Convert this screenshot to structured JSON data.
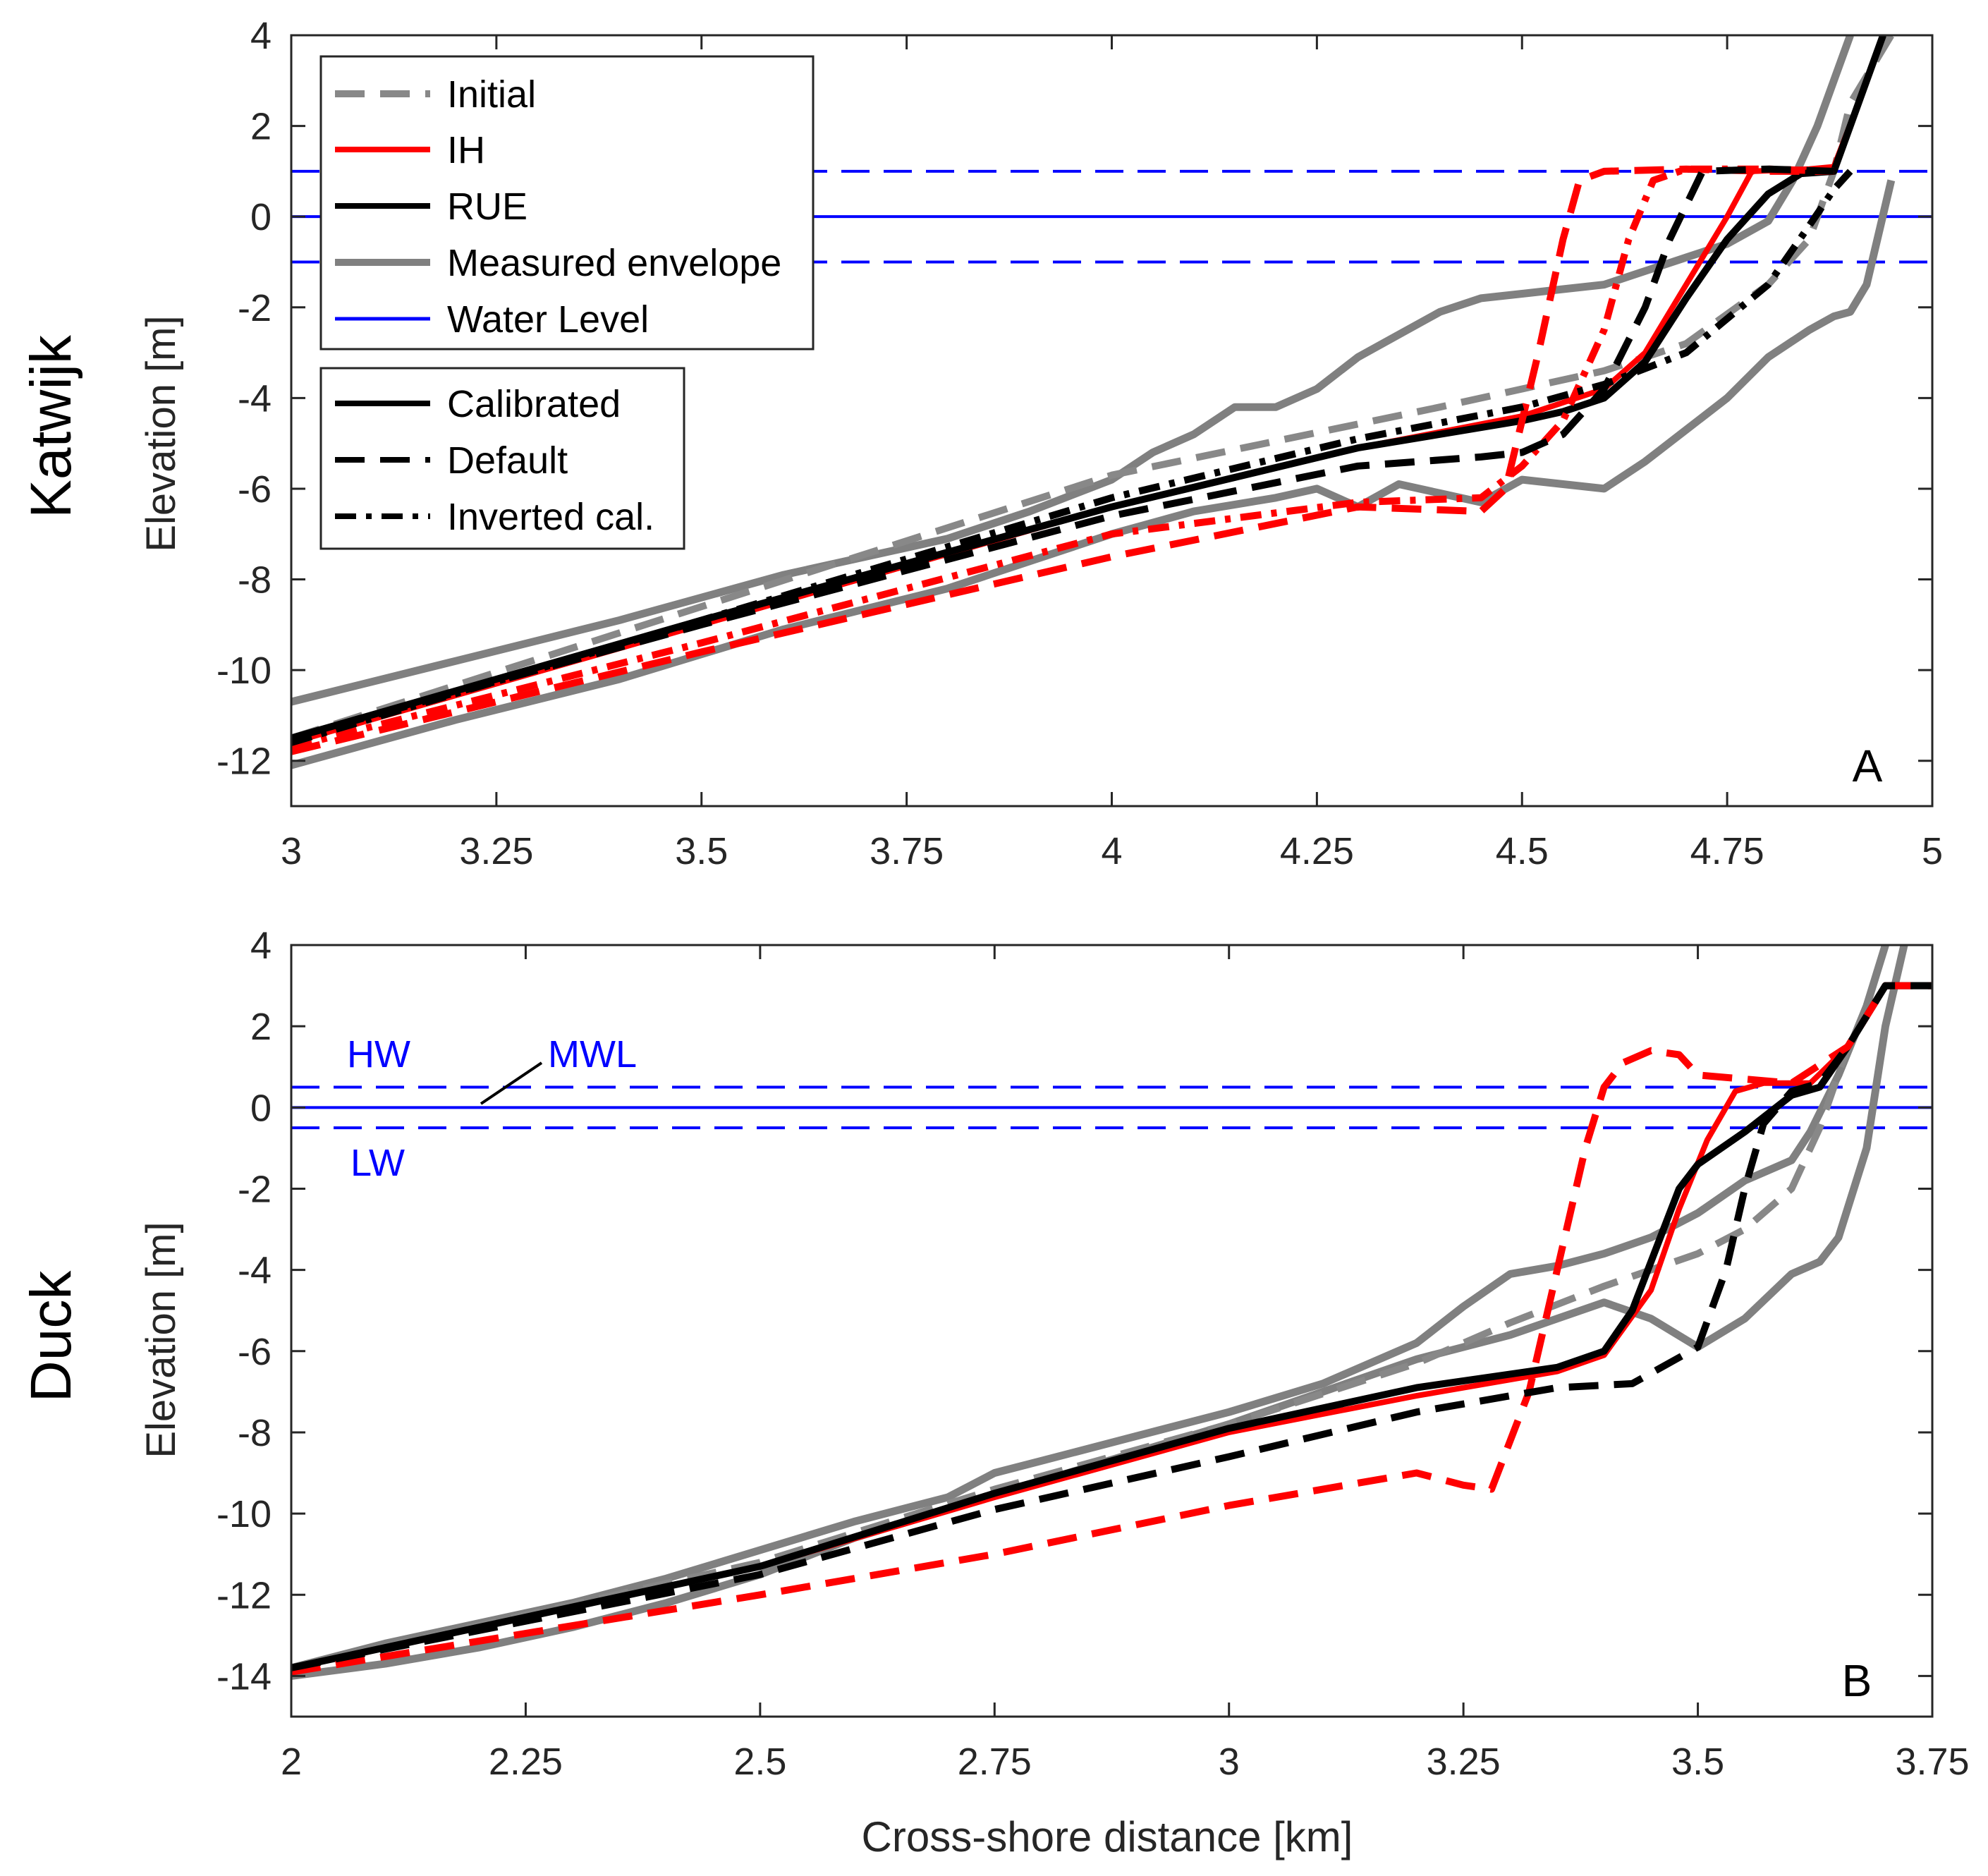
{
  "colors": {
    "initial": "#888888",
    "ih": "#ff0000",
    "rue": "#000000",
    "measured": "#808080",
    "water": "#0000ff",
    "axis": "#262626"
  },
  "chart_data": [
    {
      "type": "line",
      "panel_label": "A",
      "row_label": "Katwijk",
      "xlabel": "",
      "ylabel": "Elevation [m]",
      "xlim": [
        3,
        5
      ],
      "ylim": [
        -13,
        4
      ],
      "xticks": [
        3,
        3.25,
        3.5,
        3.75,
        4,
        4.25,
        4.5,
        4.75,
        5
      ],
      "xtick_labels": [
        "3",
        "3.25",
        "3.5",
        "3.75",
        "4",
        "4.25",
        "4.5",
        "4.75",
        "5"
      ],
      "yticks": [
        4,
        2,
        0,
        -2,
        -4,
        -6,
        -8,
        -10,
        -12
      ],
      "ytick_labels": [
        "4",
        "2",
        "0",
        "-2",
        "-4",
        "-6",
        "-8",
        "-10",
        "-12"
      ],
      "hlines": [
        {
          "name": "Water Level",
          "y": 0,
          "style": "solid",
          "color": "water"
        },
        {
          "name": "Water Level high",
          "y": 1,
          "style": "dashed",
          "color": "water"
        },
        {
          "name": "Water Level low",
          "y": -1,
          "style": "dashed",
          "color": "water"
        }
      ],
      "legend_models": [
        "Initial",
        "IH",
        "RUE",
        "Measured envelope",
        "Water Level"
      ],
      "legend_styles": [
        "Calibrated",
        "Default",
        "Inverted cal."
      ],
      "series": [
        {
          "name": "Measured envelope (upper)",
          "color": "measured",
          "style": "solid",
          "width": 11,
          "x": [
            3.0,
            3.2,
            3.4,
            3.6,
            3.8,
            3.9,
            4.0,
            4.05,
            4.1,
            4.15,
            4.2,
            4.25,
            4.3,
            4.35,
            4.4,
            4.45,
            4.5,
            4.55,
            4.6,
            4.65,
            4.7,
            4.75,
            4.8,
            4.83,
            4.86,
            4.88,
            4.9
          ],
          "y": [
            -10.7,
            -9.8,
            -8.9,
            -7.9,
            -7.1,
            -6.5,
            -5.8,
            -5.2,
            -4.8,
            -4.2,
            -4.2,
            -3.8,
            -3.1,
            -2.6,
            -2.1,
            -1.8,
            -1.7,
            -1.6,
            -1.5,
            -1.2,
            -0.9,
            -0.6,
            -0.1,
            0.8,
            2.0,
            3.0,
            4.0
          ]
        },
        {
          "name": "Measured envelope (lower)",
          "color": "measured",
          "style": "solid",
          "width": 11,
          "x": [
            3.0,
            3.2,
            3.4,
            3.6,
            3.8,
            3.9,
            4.0,
            4.1,
            4.2,
            4.25,
            4.3,
            4.35,
            4.4,
            4.45,
            4.5,
            4.55,
            4.6,
            4.65,
            4.7,
            4.75,
            4.8,
            4.85,
            4.88,
            4.9,
            4.92,
            4.95
          ],
          "y": [
            -12.1,
            -11.1,
            -10.2,
            -9.1,
            -8.2,
            -7.6,
            -7.0,
            -6.5,
            -6.2,
            -6.0,
            -6.4,
            -5.9,
            -6.1,
            -6.3,
            -5.8,
            -5.9,
            -6.0,
            -5.4,
            -4.7,
            -4.0,
            -3.1,
            -2.5,
            -2.2,
            -2.1,
            -1.5,
            0.8
          ]
        },
        {
          "name": "Initial",
          "color": "initial",
          "style": "dashed",
          "width": 10,
          "x": [
            3.0,
            3.5,
            4.0,
            4.4,
            4.6,
            4.7,
            4.8,
            4.85,
            4.88,
            4.9,
            4.95
          ],
          "y": [
            -11.5,
            -8.6,
            -5.7,
            -4.2,
            -3.4,
            -2.8,
            -1.5,
            -0.5,
            1.0,
            2.5,
            4.0
          ]
        },
        {
          "name": "IH calibrated",
          "color": "ih",
          "style": "solid",
          "width": 8,
          "x": [
            3.0,
            3.5,
            4.0,
            4.3,
            4.5,
            4.6,
            4.65,
            4.7,
            4.75,
            4.78,
            4.85,
            4.88,
            4.91,
            4.94
          ],
          "y": [
            -11.6,
            -9.0,
            -6.4,
            -5.1,
            -4.4,
            -3.8,
            -3.0,
            -1.5,
            0.0,
            1.0,
            1.05,
            1.1,
            2.5,
            4.0
          ]
        },
        {
          "name": "RUE calibrated",
          "color": "rue",
          "style": "solid",
          "width": 10,
          "x": [
            3.0,
            3.5,
            4.0,
            4.3,
            4.5,
            4.55,
            4.6,
            4.65,
            4.7,
            4.75,
            4.8,
            4.84,
            4.88,
            4.91,
            4.94
          ],
          "y": [
            -11.5,
            -8.9,
            -6.4,
            -5.1,
            -4.5,
            -4.3,
            -4.0,
            -3.2,
            -1.8,
            -0.5,
            0.5,
            0.95,
            1.0,
            2.5,
            4.0
          ]
        },
        {
          "name": "IH default",
          "color": "ih",
          "style": "dashed",
          "width": 10,
          "x": [
            3.0,
            3.5,
            4.0,
            4.3,
            4.45,
            4.48,
            4.52,
            4.55,
            4.57,
            4.6,
            4.7,
            4.8,
            4.88
          ],
          "y": [
            -11.8,
            -9.6,
            -7.5,
            -6.4,
            -6.5,
            -6.0,
            -3.0,
            -0.5,
            0.8,
            1.0,
            1.05,
            1.0,
            1.0
          ]
        },
        {
          "name": "IH inverted cal.",
          "color": "ih",
          "style": "dashdot",
          "width": 10,
          "x": [
            3.0,
            3.5,
            4.0,
            4.3,
            4.45,
            4.5,
            4.55,
            4.6,
            4.63,
            4.66,
            4.7,
            4.8,
            4.88
          ],
          "y": [
            -11.7,
            -9.4,
            -7.0,
            -6.3,
            -6.2,
            -5.5,
            -4.5,
            -2.5,
            -0.5,
            0.8,
            1.05,
            1.05,
            1.0
          ]
        },
        {
          "name": "RUE default",
          "color": "rue",
          "style": "dashed",
          "width": 10,
          "x": [
            3.0,
            3.5,
            4.0,
            4.3,
            4.45,
            4.5,
            4.55,
            4.6,
            4.65,
            4.68,
            4.72,
            4.8,
            4.88
          ],
          "y": [
            -11.5,
            -9.0,
            -6.6,
            -5.5,
            -5.3,
            -5.2,
            -4.8,
            -3.8,
            -2.0,
            -0.5,
            1.0,
            1.05,
            1.0
          ]
        },
        {
          "name": "RUE inverted cal.",
          "color": "rue",
          "style": "dashdot",
          "width": 10,
          "x": [
            3.0,
            3.5,
            4.0,
            4.3,
            4.5,
            4.6,
            4.7,
            4.8,
            4.85,
            4.88,
            4.9
          ],
          "y": [
            -11.6,
            -8.9,
            -6.2,
            -4.9,
            -4.2,
            -3.7,
            -3.0,
            -1.5,
            -0.2,
            0.6,
            1.0
          ]
        }
      ]
    },
    {
      "type": "line",
      "panel_label": "B",
      "row_label": "Duck",
      "xlabel": "Cross-shore distance [km]",
      "ylabel": "Elevation [m]",
      "xlim": [
        2,
        3.75
      ],
      "ylim": [
        -15,
        4
      ],
      "xticks": [
        2,
        2.25,
        2.5,
        2.75,
        3,
        3.25,
        3.5,
        3.75
      ],
      "xtick_labels": [
        "2",
        "2.25",
        "2.5",
        "2.75",
        "3",
        "3.25",
        "3.5",
        "3.75"
      ],
      "yticks": [
        4,
        2,
        0,
        -2,
        -4,
        -6,
        -8,
        -10,
        -12,
        -14
      ],
      "ytick_labels": [
        "4",
        "2",
        "0",
        "-2",
        "-4",
        "-6",
        "-8",
        "-10",
        "-12",
        "-14"
      ],
      "hlines": [
        {
          "name": "MWL",
          "y": 0,
          "style": "solid",
          "color": "water"
        },
        {
          "name": "HW",
          "y": 0.5,
          "style": "dashed",
          "color": "water"
        },
        {
          "name": "LW",
          "y": -0.5,
          "style": "dashed",
          "color": "water"
        }
      ],
      "annotations": {
        "hw": "HW",
        "mwl": "MWL",
        "lw": "LW"
      },
      "series": [
        {
          "name": "Measured envelope (upper)",
          "color": "measured",
          "style": "solid",
          "width": 11,
          "x": [
            2.0,
            2.1,
            2.2,
            2.3,
            2.4,
            2.5,
            2.6,
            2.7,
            2.75,
            2.8,
            2.9,
            3.0,
            3.1,
            3.2,
            3.25,
            3.3,
            3.35,
            3.4,
            3.45,
            3.5,
            3.55,
            3.6,
            3.62,
            3.65,
            3.68,
            3.7
          ],
          "y": [
            -13.8,
            -13.2,
            -12.7,
            -12.2,
            -11.6,
            -10.9,
            -10.2,
            -9.6,
            -9.0,
            -8.7,
            -8.1,
            -7.5,
            -6.8,
            -5.8,
            -4.9,
            -4.1,
            -3.9,
            -3.6,
            -3.2,
            -2.6,
            -1.8,
            -1.3,
            -0.6,
            0.8,
            2.5,
            4.0
          ]
        },
        {
          "name": "Measured envelope (lower)",
          "color": "measured",
          "style": "solid",
          "width": 11,
          "x": [
            2.0,
            2.1,
            2.2,
            2.3,
            2.4,
            2.5,
            2.6,
            2.7,
            2.8,
            2.9,
            3.0,
            3.1,
            3.2,
            3.3,
            3.35,
            3.4,
            3.45,
            3.5,
            3.55,
            3.6,
            3.63,
            3.65,
            3.68,
            3.7,
            3.72
          ],
          "y": [
            -14.0,
            -13.7,
            -13.3,
            -12.8,
            -12.2,
            -11.5,
            -10.6,
            -9.9,
            -9.2,
            -8.5,
            -7.8,
            -7.0,
            -6.2,
            -5.6,
            -5.2,
            -4.8,
            -5.2,
            -5.9,
            -5.2,
            -4.1,
            -3.8,
            -3.2,
            -1.0,
            2.0,
            4.0
          ]
        },
        {
          "name": "Initial",
          "color": "initial",
          "style": "dashed",
          "width": 10,
          "x": [
            2.0,
            2.5,
            2.75,
            3.0,
            3.2,
            3.3,
            3.4,
            3.5,
            3.55,
            3.6,
            3.63,
            3.66,
            3.7,
            3.75
          ],
          "y": [
            -13.8,
            -11.2,
            -9.4,
            -7.8,
            -6.3,
            -5.3,
            -4.4,
            -3.6,
            -3.0,
            -2.0,
            -0.5,
            1.5,
            3.0,
            3.0
          ]
        },
        {
          "name": "IH calibrated",
          "color": "ih",
          "style": "solid",
          "width": 8,
          "x": [
            2.0,
            2.5,
            2.75,
            3.0,
            3.2,
            3.35,
            3.4,
            3.45,
            3.48,
            3.51,
            3.54,
            3.57,
            3.62,
            3.66,
            3.7,
            3.75
          ],
          "y": [
            -13.8,
            -11.3,
            -9.6,
            -8.0,
            -7.1,
            -6.5,
            -6.1,
            -4.5,
            -2.5,
            -0.8,
            0.4,
            0.6,
            0.6,
            1.5,
            3.0,
            3.0
          ]
        },
        {
          "name": "RUE calibrated",
          "color": "rue",
          "style": "solid",
          "width": 10,
          "x": [
            2.0,
            2.5,
            2.75,
            3.0,
            3.2,
            3.35,
            3.4,
            3.43,
            3.46,
            3.48,
            3.5,
            3.55,
            3.6,
            3.63,
            3.66,
            3.7,
            3.75
          ],
          "y": [
            -13.8,
            -11.3,
            -9.5,
            -7.9,
            -6.9,
            -6.4,
            -6.0,
            -5.0,
            -3.2,
            -2.0,
            -1.4,
            -0.6,
            0.3,
            0.5,
            1.5,
            3.0,
            3.0
          ]
        },
        {
          "name": "IH default",
          "color": "ih",
          "style": "dashed",
          "width": 10,
          "x": [
            2.0,
            2.5,
            2.75,
            3.0,
            3.2,
            3.25,
            3.28,
            3.32,
            3.35,
            3.38,
            3.4,
            3.42,
            3.45,
            3.48,
            3.5,
            3.55,
            3.6,
            3.66,
            3.7,
            3.75
          ],
          "y": [
            -13.9,
            -12.0,
            -11.0,
            -9.8,
            -9.0,
            -9.3,
            -9.4,
            -7.0,
            -4.0,
            -1.0,
            0.5,
            1.1,
            1.4,
            1.3,
            0.8,
            0.7,
            0.6,
            1.5,
            3.0,
            3.0
          ]
        },
        {
          "name": "RUE default",
          "color": "rue",
          "style": "dashed",
          "width": 10,
          "x": [
            2.0,
            2.5,
            2.75,
            3.0,
            3.2,
            3.35,
            3.43,
            3.5,
            3.53,
            3.55,
            3.57,
            3.6,
            3.63,
            3.66,
            3.7,
            3.75
          ],
          "y": [
            -13.8,
            -11.5,
            -9.9,
            -8.6,
            -7.5,
            -6.9,
            -6.8,
            -5.9,
            -4.0,
            -2.0,
            -0.4,
            0.4,
            0.6,
            1.5,
            3.0,
            3.0
          ]
        }
      ]
    }
  ]
}
